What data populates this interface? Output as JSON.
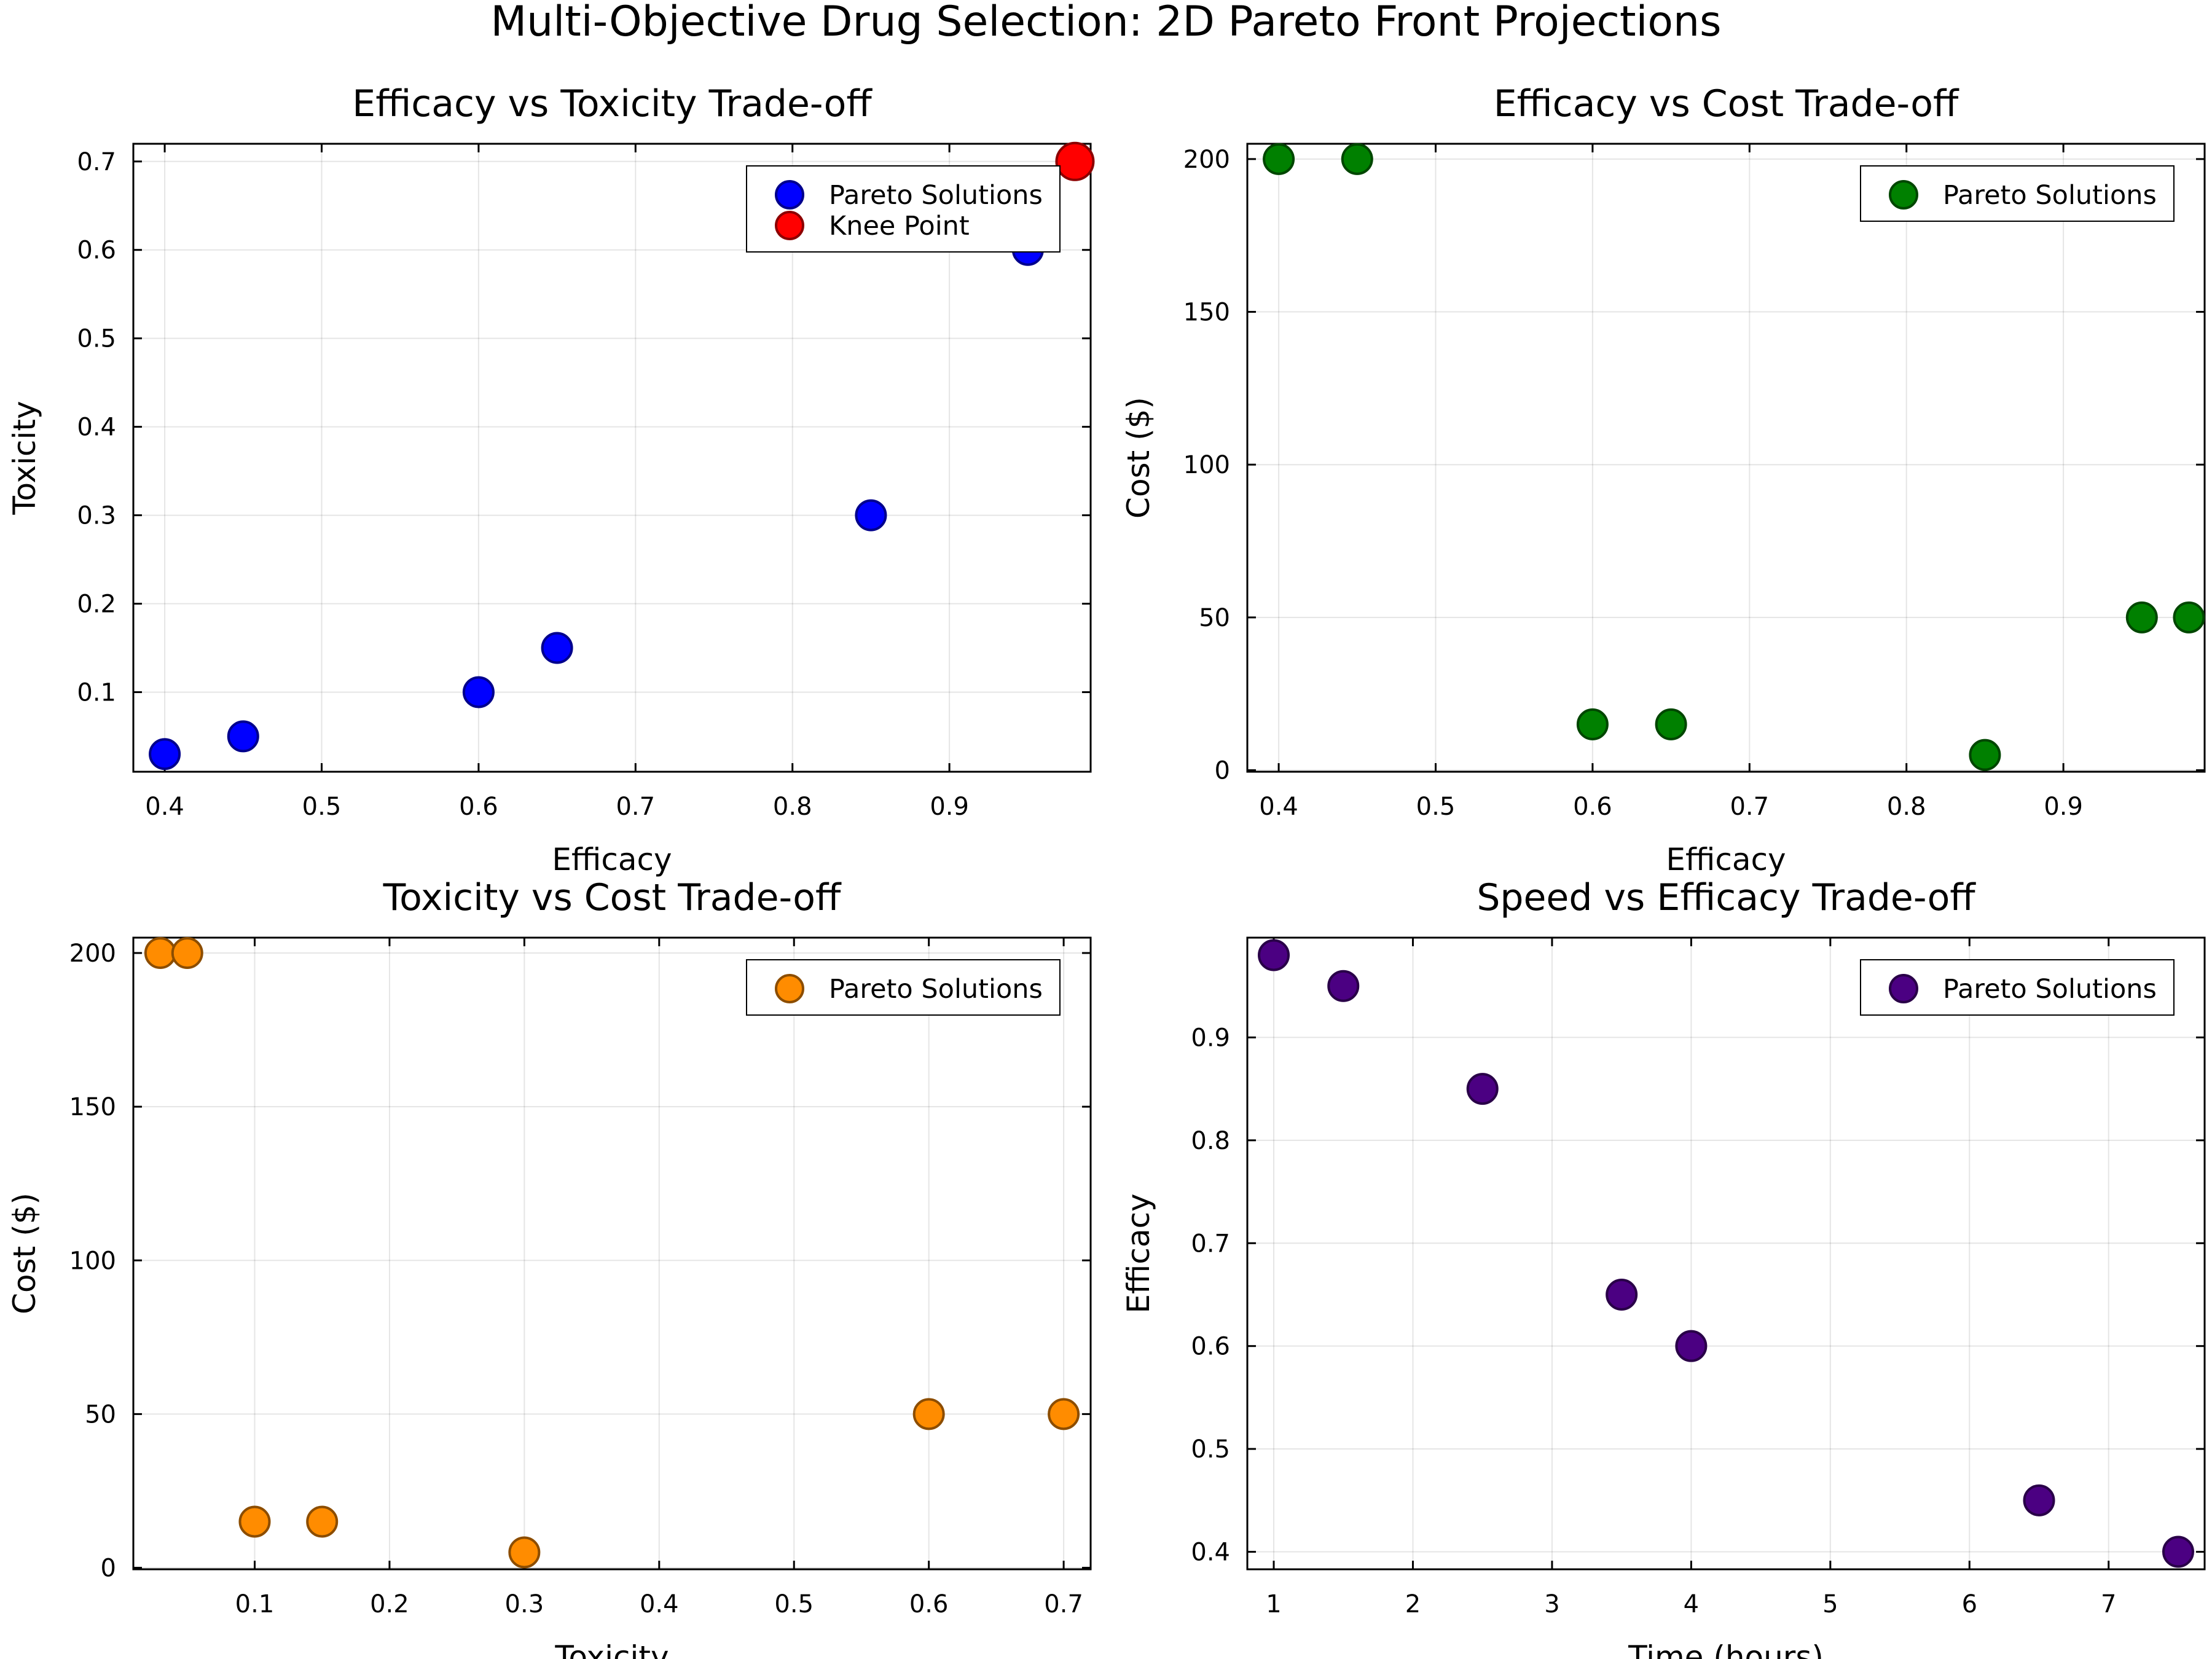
{
  "figure_title": "Multi-Objective Drug Selection: 2D Pareto Front Projections",
  "chart_data": [
    {
      "type": "scatter",
      "title": "Efficacy vs Toxicity Trade-off",
      "xlabel": "Efficacy",
      "ylabel": "Toxicity",
      "xlim": [
        0.38,
        0.99
      ],
      "ylim": [
        0.01,
        0.72
      ],
      "xticks": [
        0.4,
        0.5,
        0.6,
        0.7,
        0.8,
        0.9
      ],
      "yticks": [
        0.1,
        0.2,
        0.3,
        0.4,
        0.5,
        0.6,
        0.7
      ],
      "grid": true,
      "legend": "top-right",
      "series": [
        {
          "name": "Pareto Solutions",
          "color": "#0000ff",
          "x": [
            0.4,
            0.45,
            0.6,
            0.65,
            0.85,
            0.95,
            0.98
          ],
          "y": [
            0.03,
            0.05,
            0.1,
            0.15,
            0.3,
            0.6,
            0.7
          ]
        },
        {
          "name": "Knee Point",
          "color": "#ff0000",
          "large": true,
          "x": [
            0.98
          ],
          "y": [
            0.7
          ]
        }
      ]
    },
    {
      "type": "scatter",
      "title": "Efficacy vs Cost Trade-off",
      "xlabel": "Efficacy",
      "ylabel": "Cost ($)",
      "xlim": [
        0.38,
        0.99
      ],
      "ylim": [
        -0.5,
        205
      ],
      "xticks": [
        0.4,
        0.5,
        0.6,
        0.7,
        0.8,
        0.9
      ],
      "yticks": [
        0,
        50,
        100,
        150,
        200
      ],
      "grid": true,
      "legend": "top-right",
      "series": [
        {
          "name": "Pareto Solutions",
          "color": "#008000",
          "x": [
            0.4,
            0.45,
            0.6,
            0.65,
            0.85,
            0.95,
            0.98
          ],
          "y": [
            200,
            200,
            15,
            15,
            5,
            50,
            50
          ]
        }
      ]
    },
    {
      "type": "scatter",
      "title": "Toxicity vs Cost Trade-off",
      "xlabel": "Toxicity",
      "ylabel": "Cost ($)",
      "xlim": [
        0.01,
        0.72
      ],
      "ylim": [
        -0.5,
        205
      ],
      "xticks": [
        0.1,
        0.2,
        0.3,
        0.4,
        0.5,
        0.6,
        0.7
      ],
      "yticks": [
        0,
        50,
        100,
        150,
        200
      ],
      "grid": true,
      "legend": "top-right",
      "series": [
        {
          "name": "Pareto Solutions",
          "color": "#ff8c00",
          "x": [
            0.03,
            0.05,
            0.1,
            0.15,
            0.3,
            0.6,
            0.7
          ],
          "y": [
            200,
            200,
            15,
            15,
            5,
            50,
            50
          ]
        }
      ]
    },
    {
      "type": "scatter",
      "title": "Speed vs Efficacy Trade-off",
      "xlabel": "Time (hours)",
      "ylabel": "Efficacy",
      "xlim": [
        0.81,
        7.69
      ],
      "ylim": [
        0.383,
        0.997
      ],
      "xticks": [
        1,
        2,
        3,
        4,
        5,
        6,
        7
      ],
      "yticks": [
        0.4,
        0.5,
        0.6,
        0.7,
        0.8,
        0.9
      ],
      "grid": true,
      "legend": "top-right",
      "series": [
        {
          "name": "Pareto Solutions",
          "color": "#4b0082",
          "x": [
            1,
            1.5,
            2.5,
            3.5,
            4,
            6.5,
            7.5
          ],
          "y": [
            0.98,
            0.95,
            0.85,
            0.65,
            0.6,
            0.45,
            0.4
          ]
        }
      ]
    }
  ]
}
